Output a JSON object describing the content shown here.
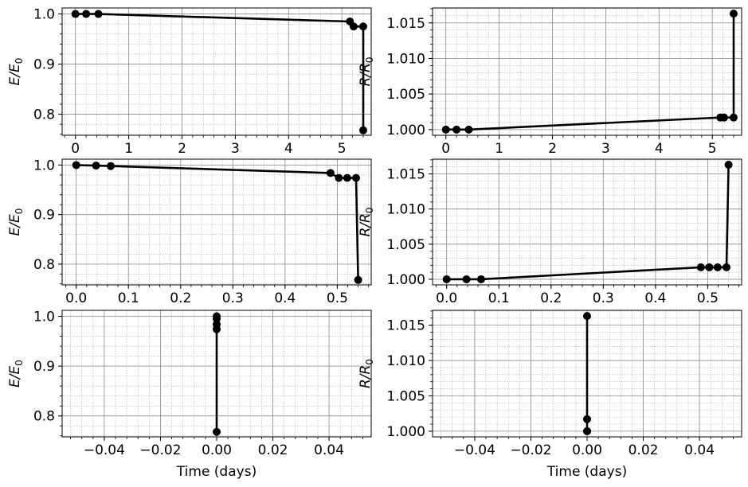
{
  "chart_data": [
    {
      "type": "line",
      "xlabel": "",
      "ylabel": "E/E0",
      "xlim": [
        -0.25,
        5.55
      ],
      "ylim": [
        0.758,
        1.012
      ],
      "x_ticks": [
        0,
        1,
        2,
        3,
        4,
        5
      ],
      "x_tick_labels": [
        "0",
        "1",
        "2",
        "3",
        "4",
        "5"
      ],
      "y_ticks": [
        0.8,
        0.9,
        1.0
      ],
      "y_tick_labels": [
        "0.8",
        "0.9",
        "1.0"
      ],
      "grid": true,
      "x": [
        0.0,
        0.2,
        0.43,
        5.15,
        5.22,
        5.4,
        5.4
      ],
      "y": [
        1.0,
        1.0,
        1.0,
        0.985,
        0.975,
        0.975,
        0.768
      ]
    },
    {
      "type": "line",
      "xlabel": "",
      "ylabel": "R/R0",
      "xlim": [
        -0.25,
        5.55
      ],
      "ylim": [
        0.9992,
        1.0171
      ],
      "x_ticks": [
        0,
        1,
        2,
        3,
        4,
        5
      ],
      "x_tick_labels": [
        "0",
        "1",
        "2",
        "3",
        "4",
        "5"
      ],
      "y_ticks": [
        1.0,
        1.005,
        1.01,
        1.015
      ],
      "y_tick_labels": [
        "1.000",
        "1.005",
        "1.010",
        "1.015"
      ],
      "grid": true,
      "x": [
        0.0,
        0.2,
        0.43,
        5.15,
        5.22,
        5.4,
        5.4
      ],
      "y": [
        1.0,
        1.0,
        1.0,
        1.0017,
        1.0017,
        1.0017,
        1.0163
      ]
    },
    {
      "type": "line",
      "xlabel": "",
      "ylabel": "E/E0",
      "xlim": [
        -0.027,
        0.565
      ],
      "ylim": [
        0.758,
        1.012
      ],
      "x_ticks": [
        0.0,
        0.1,
        0.2,
        0.3,
        0.4,
        0.5
      ],
      "x_tick_labels": [
        "0.0",
        "0.1",
        "0.2",
        "0.3",
        "0.4",
        "0.5"
      ],
      "y_ticks": [
        0.8,
        0.9,
        1.0
      ],
      "y_tick_labels": [
        "0.8",
        "0.9",
        "1.0"
      ],
      "grid": true,
      "x": [
        0.0,
        0.038,
        0.066,
        0.487,
        0.503,
        0.519,
        0.536,
        0.54
      ],
      "y": [
        1.0,
        0.999,
        0.998,
        0.984,
        0.974,
        0.974,
        0.974,
        0.768
      ]
    },
    {
      "type": "line",
      "xlabel": "",
      "ylabel": "R/R0",
      "xlim": [
        -0.027,
        0.565
      ],
      "ylim": [
        0.9992,
        1.0171
      ],
      "x_ticks": [
        0.0,
        0.1,
        0.2,
        0.3,
        0.4,
        0.5
      ],
      "x_tick_labels": [
        "0.0",
        "0.1",
        "0.2",
        "0.3",
        "0.4",
        "0.5"
      ],
      "y_ticks": [
        1.0,
        1.005,
        1.01,
        1.015
      ],
      "y_tick_labels": [
        "1.000",
        "1.005",
        "1.010",
        "1.015"
      ],
      "grid": true,
      "x": [
        0.0,
        0.038,
        0.066,
        0.487,
        0.503,
        0.519,
        0.536,
        0.54
      ],
      "y": [
        1.0,
        1.0,
        1.0,
        1.0017,
        1.0017,
        1.0017,
        1.0017,
        1.0163
      ]
    },
    {
      "type": "line",
      "xlabel": "Time (days)",
      "ylabel": "E/E0",
      "xlim": [
        -0.055,
        0.055
      ],
      "ylim": [
        0.758,
        1.012
      ],
      "x_ticks": [
        -0.04,
        -0.02,
        0.0,
        0.02,
        0.04
      ],
      "x_tick_labels": [
        "−0.04",
        "−0.02",
        "0.00",
        "0.02",
        "0.04"
      ],
      "y_ticks": [
        0.8,
        0.9,
        1.0
      ],
      "y_tick_labels": [
        "0.8",
        "0.9",
        "1.0"
      ],
      "grid": true,
      "x": [
        0.0,
        0.0,
        0.0,
        0.0,
        0.0
      ],
      "y": [
        1.0,
        0.995,
        0.984,
        0.974,
        0.768
      ]
    },
    {
      "type": "line",
      "xlabel": "Time (days)",
      "ylabel": "R/R0",
      "xlim": [
        -0.055,
        0.055
      ],
      "ylim": [
        0.9992,
        1.0171
      ],
      "x_ticks": [
        -0.04,
        -0.02,
        0.0,
        0.02,
        0.04
      ],
      "x_tick_labels": [
        "−0.04",
        "−0.02",
        "0.00",
        "0.02",
        "0.04"
      ],
      "y_ticks": [
        1.0,
        1.005,
        1.01,
        1.015
      ],
      "y_tick_labels": [
        "1.000",
        "1.005",
        "1.010",
        "1.015"
      ],
      "grid": true,
      "x": [
        0.0,
        0.0,
        0.0,
        0.0
      ],
      "y": [
        1.0,
        1.0,
        1.0017,
        1.0163
      ]
    }
  ]
}
